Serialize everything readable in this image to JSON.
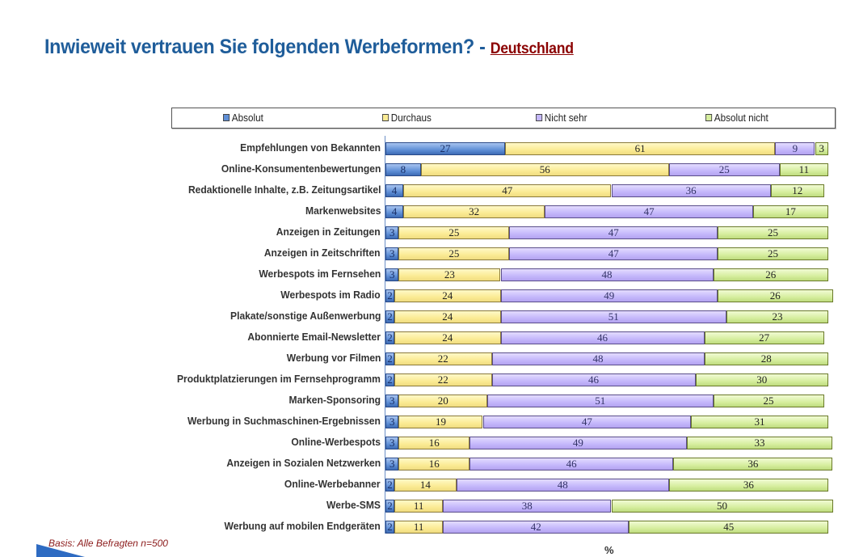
{
  "chart_data": {
    "type": "bar",
    "orientation": "horizontal",
    "stacked": true,
    "title": "Inwieweit vertrauen Sie folgenden Werbeformen?",
    "title_separator": " - ",
    "subtitle": "Deutschland",
    "xlabel": "%",
    "ylabel": "",
    "xlim": [
      0,
      100
    ],
    "legend_position": "top",
    "grid": false,
    "footnote": "Basis: Alle Befragten n=500",
    "categories": [
      "Empfehlungen von Bekannten",
      "Online-Konsumentenbewertungen",
      "Redaktionelle Inhalte, z.B. Zeitungsartikel",
      "Markenwebsites",
      "Anzeigen in Zeitungen",
      "Anzeigen in Zeitschriften",
      "Werbespots im Fernsehen",
      "Werbespots im Radio",
      "Plakate/sonstige Außenwerbung",
      "Abonnierte Email-Newsletter",
      "Werbung vor Filmen",
      "Produktplatzierungen im Fernsehprogramm",
      "Marken-Sponsoring",
      "Werbung in Suchmaschinen-Ergebnissen",
      "Online-Werbespots",
      "Anzeigen in Sozialen Netzwerken",
      "Online-Werbebanner",
      "Werbe-SMS",
      "Werbung auf mobilen Endgeräten"
    ],
    "series": [
      {
        "name": "Absolut",
        "color": "#5f8fd6",
        "values": [
          27,
          8,
          4,
          4,
          3,
          3,
          3,
          2,
          2,
          2,
          2,
          2,
          3,
          3,
          3,
          3,
          2,
          2,
          2
        ]
      },
      {
        "name": "Durchaus",
        "color": "#fbeb94",
        "values": [
          61,
          56,
          47,
          32,
          25,
          25,
          23,
          24,
          24,
          24,
          22,
          22,
          20,
          19,
          16,
          16,
          14,
          11,
          11
        ]
      },
      {
        "name": "Nicht sehr",
        "color": "#c4b7fb",
        "values": [
          9,
          25,
          36,
          47,
          47,
          47,
          48,
          49,
          51,
          46,
          48,
          46,
          51,
          47,
          49,
          46,
          48,
          38,
          42
        ]
      },
      {
        "name": "Absolut nicht",
        "color": "#d6ee9f",
        "values": [
          3,
          11,
          12,
          17,
          25,
          25,
          26,
          26,
          23,
          27,
          28,
          30,
          25,
          31,
          33,
          36,
          36,
          50,
          45
        ]
      }
    ]
  }
}
